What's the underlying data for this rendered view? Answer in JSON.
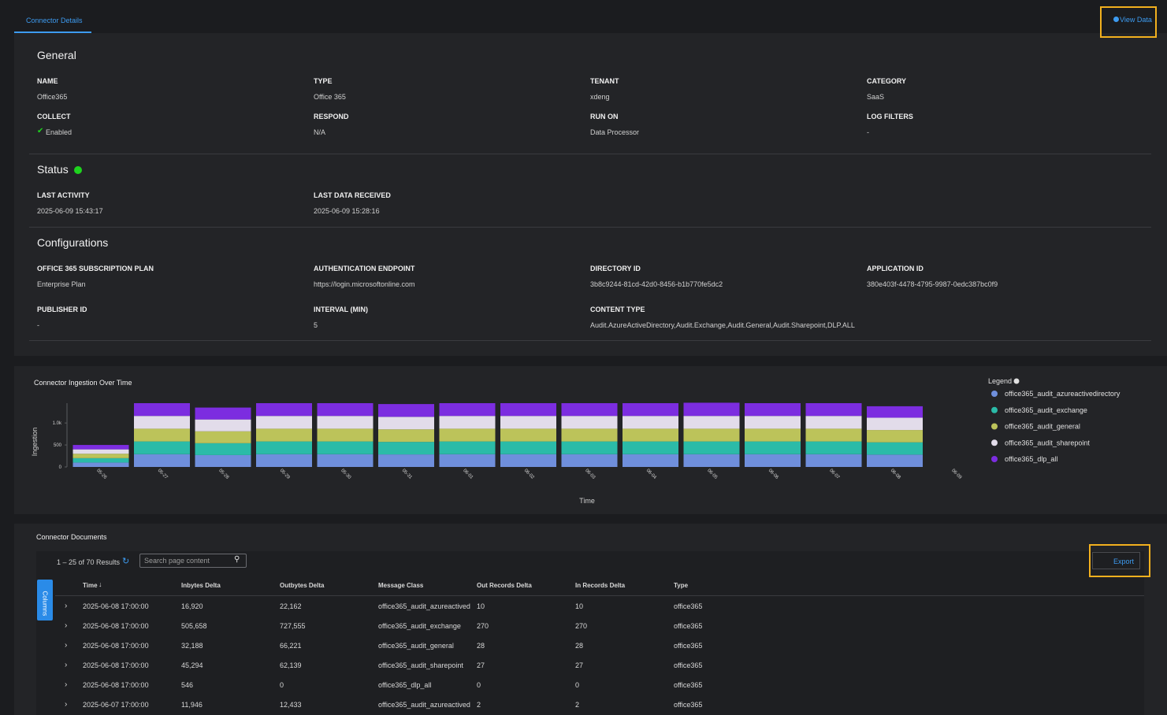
{
  "tab": "Connector Details",
  "view_data": "View Data",
  "sections": [
    {
      "title": "General",
      "fields": [
        {
          "label": "NAME",
          "value": "Office365"
        },
        {
          "label": "TYPE",
          "value": "Office 365"
        },
        {
          "label": "TENANT",
          "value": "xdeng"
        },
        {
          "label": "CATEGORY",
          "value": "SaaS"
        },
        {
          "label": "COLLECT",
          "value": "Enabled"
        },
        {
          "label": "RESPOND",
          "value": "N/A"
        },
        {
          "label": "RUN ON",
          "value": "Data Processor"
        },
        {
          "label": "LOG FILTERS",
          "value": "-"
        }
      ]
    },
    {
      "title": "Status",
      "fields": [
        {
          "label": "LAST ACTIVITY",
          "value": "2025-06-09 15:43:17"
        },
        {
          "label": "LAST DATA RECEIVED",
          "value": "2025-06-09 15:28:16"
        }
      ]
    },
    {
      "title": "Configurations",
      "fields": [
        {
          "label": "OFFICE 365 SUBSCRIPTION PLAN",
          "value": "Enterprise Plan"
        },
        {
          "label": "AUTHENTICATION ENDPOINT",
          "value": "https://login.microsoftonline.com"
        },
        {
          "label": "DIRECTORY ID",
          "value": "3b8c9244-81cd-42d0-8456-b1b770fe5dc2"
        },
        {
          "label": "APPLICATION ID",
          "value": "380e403f-4478-4795-9987-0edc387bc0f9"
        },
        {
          "label": "PUBLISHER ID",
          "value": "-"
        },
        {
          "label": "INTERVAL (MIN)",
          "value": "5"
        },
        {
          "label": "CONTENT TYPE",
          "value": "Audit.AzureActiveDirectory,Audit.Exchange,Audit.General,Audit.Sharepoint,DLP.ALL"
        }
      ]
    }
  ],
  "chart_data": {
    "type": "bar",
    "stacked": true,
    "title": "Connector Ingestion Over Time",
    "x_label": "Time",
    "y_label": "Ingestion",
    "legend_title": "Legend",
    "categories": [
      "05-26",
      "05-27",
      "05-28",
      "05-29",
      "05-30",
      "05-31",
      "06-01",
      "06-02",
      "06-03",
      "06-04",
      "06-05",
      "06-06",
      "06-07",
      "06-08",
      "06-09"
    ],
    "series": [
      {
        "name": "office365_audit_azureactivedirectory",
        "color": "#6f8fdc",
        "values": [
          100,
          290,
          270,
          290,
          290,
          285,
          290,
          290,
          290,
          290,
          290,
          290,
          290,
          280,
          null
        ]
      },
      {
        "name": "office365_audit_exchange",
        "color": "#2bbba8",
        "values": [
          100,
          290,
          270,
          290,
          290,
          285,
          290,
          290,
          290,
          290,
          290,
          290,
          290,
          280,
          null
        ]
      },
      {
        "name": "office365_audit_general",
        "color": "#bcc35a",
        "values": [
          100,
          290,
          270,
          290,
          290,
          285,
          290,
          290,
          290,
          290,
          290,
          290,
          290,
          280,
          null
        ]
      },
      {
        "name": "office365_audit_sharepoint",
        "color": "#e2dcea",
        "values": [
          100,
          290,
          270,
          290,
          290,
          285,
          290,
          290,
          290,
          290,
          290,
          290,
          290,
          280,
          null
        ]
      },
      {
        "name": "office365_dlp_all",
        "color": "#7c2de0",
        "values": [
          100,
          290,
          270,
          290,
          290,
          290,
          290,
          290,
          290,
          290,
          300,
          290,
          290,
          260,
          null
        ]
      }
    ],
    "ylim": [
      0,
      1450
    ],
    "yticks": [
      0,
      500,
      {
        "value": 1000,
        "label": "1.0k"
      }
    ]
  },
  "documents": {
    "title": "Connector Documents",
    "results": "1 – 25 of 70 Results",
    "search_placeholder": "Search page content",
    "export": "Export",
    "columns_button": "Columns",
    "table": {
      "headers": [
        "Time",
        "Inbytes Delta",
        "Outbytes Delta",
        "Message Class",
        "Out Records Delta",
        "In Records Delta",
        "Type"
      ],
      "rows": [
        [
          "2025-06-08 17:00:00",
          "16,920",
          "22,162",
          "office365_audit_azureactived",
          "10",
          "10",
          "office365"
        ],
        [
          "2025-06-08 17:00:00",
          "505,658",
          "727,555",
          "office365_audit_exchange",
          "270",
          "270",
          "office365"
        ],
        [
          "2025-06-08 17:00:00",
          "32,188",
          "66,221",
          "office365_audit_general",
          "28",
          "28",
          "office365"
        ],
        [
          "2025-06-08 17:00:00",
          "45,294",
          "62,139",
          "office365_audit_sharepoint",
          "27",
          "27",
          "office365"
        ],
        [
          "2025-06-08 17:00:00",
          "546",
          "0",
          "office365_dlp_all",
          "0",
          "0",
          "office365"
        ],
        [
          "2025-06-07 17:00:00",
          "11,946",
          "12,433",
          "office365_audit_azureactived",
          "2",
          "2",
          "office365"
        ]
      ]
    }
  }
}
